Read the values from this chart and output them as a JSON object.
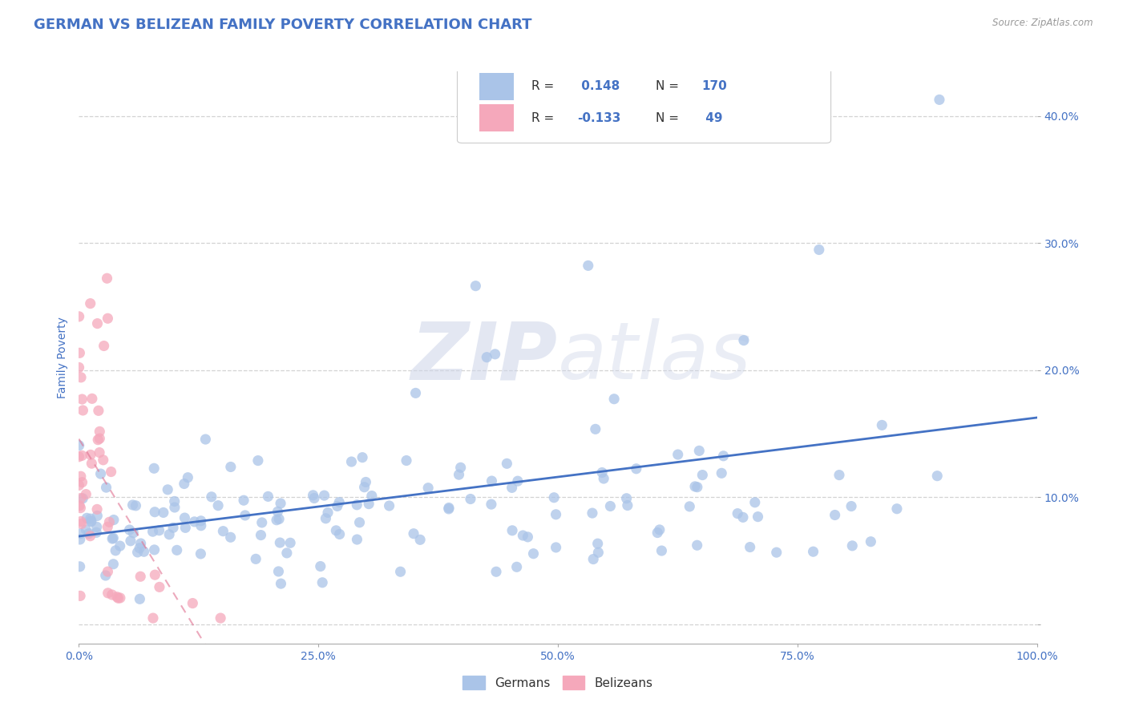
{
  "title": "GERMAN VS BELIZEAN FAMILY POVERTY CORRELATION CHART",
  "source": "Source: ZipAtlas.com",
  "ylabel": "Family Poverty",
  "xlim": [
    0.0,
    1.0
  ],
  "ylim": [
    -0.015,
    0.435
  ],
  "yticks": [
    0.0,
    0.1,
    0.2,
    0.3,
    0.4
  ],
  "ytick_labels": [
    "",
    "10.0%",
    "20.0%",
    "30.0%",
    "40.0%"
  ],
  "xticks": [
    0.0,
    0.25,
    0.5,
    0.75,
    1.0
  ],
  "xtick_labels": [
    "0.0%",
    "25.0%",
    "50.0%",
    "75.0%",
    "100.0%"
  ],
  "german_color": "#aac4e8",
  "belizean_color": "#f5a8bb",
  "german_line_color": "#4472c4",
  "belizean_line_color": "#e07090",
  "legend_german_R": " 0.148",
  "legend_german_N": "170",
  "legend_belizean_R": "-0.133",
  "legend_belizean_N": " 49",
  "watermark_zip": "ZIP",
  "watermark_atlas": "atlas",
  "background_color": "#ffffff",
  "grid_color": "#c8c8c8",
  "title_color": "#4472c4",
  "axis_label_color": "#4472c4",
  "tick_color": "#4472c4",
  "source_color": "#999999",
  "title_fontsize": 13,
  "label_fontsize": 10,
  "tick_fontsize": 10,
  "german_seed": 42,
  "belizean_seed": 77,
  "german_n": 170,
  "belizean_n": 49,
  "german_R": 0.148,
  "belizean_R": -0.133
}
